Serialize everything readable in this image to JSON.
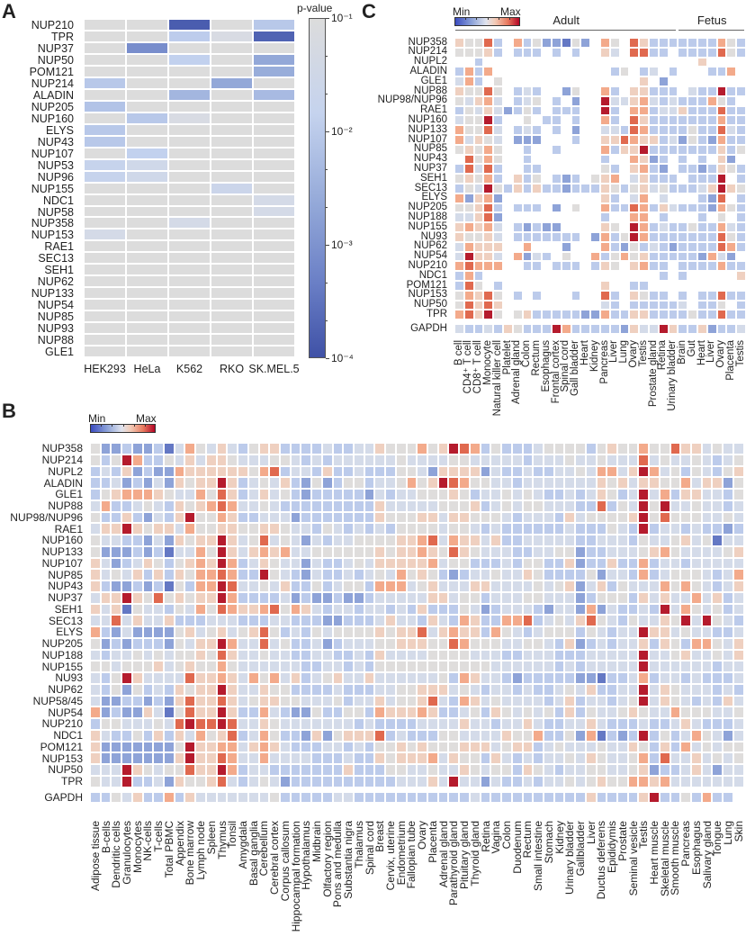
{
  "panels": {
    "a": "A",
    "b": "B",
    "c": "C"
  },
  "chart_data": [
    {
      "id": "A",
      "type": "heatmap",
      "title": "",
      "colorbar": {
        "title": "p-value",
        "ticks": [
          "10⁻¹",
          "10⁻²",
          "10⁻³",
          "10⁻⁴"
        ],
        "range_log10": [
          -1,
          -4
        ]
      },
      "columns": [
        "HEK293",
        "HeLa",
        "K562",
        "RKO",
        "SK.MEL.5"
      ],
      "rows": [
        "NUP210",
        "TPR",
        "NUP37",
        "NUP50",
        "POM121",
        "NUP214",
        "ALADIN",
        "NUP205",
        "NUP160",
        "ELYS",
        "NUP43",
        "NUP107",
        "NUP53",
        "NUP96",
        "NUP155",
        "NDC1",
        "NUP58",
        "NUP358",
        "NUP153",
        "RAE1",
        "SEC13",
        "SEH1",
        "NUP62",
        "NUP133",
        "NUP54",
        "NUP85",
        "NUP93",
        "NUP88",
        "GLE1"
      ],
      "log10_pvalues": [
        [
          -1,
          -1,
          -3.8,
          -1,
          -1.8
        ],
        [
          -1,
          -1,
          -1.7,
          -1.1,
          -3.7
        ],
        [
          -1,
          -3.0,
          -1,
          -1,
          -1
        ],
        [
          -1,
          -1,
          -1.6,
          -1,
          -2.5
        ],
        [
          -1,
          -1,
          -1,
          -1,
          -2.4
        ],
        [
          -1.8,
          -1,
          -1,
          -2.5,
          -1
        ],
        [
          -1,
          -1,
          -2.2,
          -1,
          -2.1
        ],
        [
          -1.9,
          -1,
          -1,
          -1,
          -1
        ],
        [
          -1,
          -1.8,
          -1.1,
          -1,
          -1
        ],
        [
          -1.8,
          -1,
          -1,
          -1,
          -1
        ],
        [
          -1.8,
          -1,
          -1,
          -1,
          -1
        ],
        [
          -1,
          -1.6,
          -1,
          -1,
          -1
        ],
        [
          -1.5,
          -1.3,
          -1,
          -1,
          -1
        ],
        [
          -1.5,
          -1.3,
          -1,
          -1,
          -1
        ],
        [
          -1,
          -1,
          -1,
          -1.4,
          -1
        ],
        [
          -1,
          -1,
          -1,
          -1,
          -1.2
        ],
        [
          -1,
          -1,
          -1,
          -1,
          -1.2
        ],
        [
          -1,
          -1,
          -1.2,
          -1,
          -1
        ],
        [
          -1.2,
          -1,
          -1,
          -1,
          -1
        ],
        [
          -1,
          -1,
          -1,
          -1,
          -1
        ],
        [
          -1,
          -1,
          -1,
          -1,
          -1
        ],
        [
          -1,
          -1,
          -1,
          -1,
          -1
        ],
        [
          -1,
          -1,
          -1,
          -1,
          -1
        ],
        [
          -1,
          -1,
          -1,
          -1,
          -1
        ],
        [
          -1,
          -1,
          -1,
          -1,
          -1
        ],
        [
          -1,
          -1,
          -1,
          -1,
          -1
        ],
        [
          -1,
          -1,
          -1,
          -1,
          -1
        ],
        [
          -1,
          -1,
          -1,
          -1,
          -1
        ],
        [
          -1,
          -1,
          -1,
          -1,
          -1
        ]
      ]
    },
    {
      "id": "B",
      "type": "heatmap",
      "scale_note": "values 0 (Min) to 9 (Max)",
      "colorbar": {
        "min_label": "Min",
        "max_label": "Max"
      },
      "columns": [
        "Adipose tissue",
        "B-cells",
        "Dendritic cells",
        "Granulocytes",
        "Monocytes",
        "NK-cells",
        "T-cells",
        "Total PBMC",
        "Appendix",
        "Bone marrow",
        "Lymph node",
        "Spleen",
        "Thymus",
        "Tonsil",
        "Amygdala",
        "Basal ganglia",
        "Cerebellum",
        "Cerebral cortex",
        "Corpus callosum",
        "Hippocampal formation",
        "Hypothalamus",
        "Midbrain",
        "Olfactory region",
        "Pons and medulla",
        "Substantia nigra",
        "Thalamus",
        "Spinal cord",
        "Breast",
        "Cervix, uterine",
        "Endometrium",
        "Fallopian tube",
        "Ovary",
        "Placenta",
        "Adrenal gland",
        "Parathyroid gland",
        "Pituitary gland",
        "Thyroid gland",
        "Retina",
        "Vagina",
        "Colon",
        "Duodenum",
        "Rectum",
        "Small intestine",
        "Stomach",
        "Kidney",
        "Urinary bladder",
        "Gallbladder",
        "Liver",
        "Ductus deferens",
        "Epididymis",
        "Prostate",
        "Seminal vesicle",
        "Testis",
        "Heart muscle",
        "Skeletal muscle",
        "Smooth muscle",
        "Pancreas",
        "Esophagus",
        "Salivary gland",
        "Tongue",
        "Lung",
        "Skin"
      ],
      "rows": [
        "NUP358",
        "NUP214",
        "NUPL2",
        "ALADIN",
        "GLE1",
        "NUP88",
        "NUP98/NUP96",
        "RAE1",
        "NUP160",
        "NUP133",
        "NUP107",
        "NUP85",
        "NUP43",
        "NUP37",
        "SEH1",
        "SEC13",
        "ELYS",
        "NUP205",
        "NUP188",
        "NUP155",
        "NU93",
        "NUP62",
        "NUP58/45",
        "NUP54",
        "NUP210",
        "NDC1",
        "POM121",
        "NUP153",
        "NUP50",
        "TPR"
      ],
      "values": [
        "52232231475464356633334334465557569873533345555356557558664544",
        "53597335464665444554343444444544445544444344454454448454454345",
        "34362322766666657834436334333554266662433433445477469745354356",
        "33423242656696345463252355344575698755443444444465646655746625",
        "35677765447586346453233333243445556534454543343465349473664435",
        "47334543656787445433333333364444455563454554443383549594454434",
        "53363243695576334442333333365556646655543444364555569585554454",
        "46696566475566556654435434343555545543433333343335439344343323",
        "54433242656696458454243445555667847664633444443344435445645144",
        "52223231447596467674455555565667658654443344552334445675444456",
        "64234653567697346544243345466666745533343553362336337344344444",
        "64546363657787339543243343454756532344544653333524437345554347",
        "63223231537798445463353455377745644466444454562463544475754346",
        "46696585656697333342322322344444664553444554442355536464474634",
        "64615443547587667857643443443436333542344432442724334394754534",
        "44846446333444333443332233346443643763377834546854354465949543",
        "73242222564564568534354555565668467663754345553543449664544334",
        "52323332546697448453342344455666558755544554362343446365377546",
        "43445454556586445443344334364444555544433444333444449445644546",
        "55455564565575444444334434355555555555444444343444449444444344",
        "43596444486676475746345644644444453764432333332213347344343334",
        "43525343656696446553333433344556664543443433454633449465444343",
        "42233232686686456655444534464556843764544443463443459465434364",
        "72322641586696337432253355376667633453654545363544565447555445",
        "35544454898898446544444443433334444644344643344643334334643334",
        "64335363647568347533262566683433355444465573352713239353475424",
        "62222222596677467643334434355656555666456634544454465363745455",
        "62222222696687447444433343365666746553643434454654457384464545",
        "44496545586697344333333363335544544654553654344554456233464244",
        "54493342655684345423333333333444649442433434454565577674444444"
      ],
      "reference_row": {
        "label": "GAPDH",
        "values": "33546337364444444533333443333333333343333333333633336933537 33"
      }
    },
    {
      "id": "C",
      "type": "heatmap",
      "scale_note": "values 0 (Min) to 9 (Max); '.' = no data",
      "colorbar": {
        "min_label": "Min",
        "max_label": "Max"
      },
      "groups": [
        {
          "label": "Adult",
          "n": 23
        },
        {
          "label": "Fetus",
          "n": 7
        }
      ],
      "columns": [
        "B cell",
        "CD4⁺ T cell",
        "CD8⁺ T cell",
        "Monocyte",
        "Natural killer cell",
        "Platelet",
        "Adrenal gland",
        "Colon",
        "Rectum",
        "Esophagus",
        "Frontal cortex",
        "Spinal cord",
        "Gall bladder",
        "Heart",
        "Kidney",
        "Pancreas",
        "Liver",
        "Lung",
        "Ovary",
        "Testis",
        "Prostate gland",
        "Retina",
        "Urinary bladder",
        "Brain",
        "Gut",
        "Heart",
        "Liver",
        "Ovary",
        "Placenta",
        "Testis"
      ],
      "rows": [
        "NUP358",
        "NUP214",
        "NUPL2",
        "ALADIN",
        "GLE1",
        "NUP88",
        "NUP98/NUP96",
        "RAE1",
        "NUP160",
        "NUP133",
        "NUP107",
        "NUP85",
        "NUP43",
        "NUP37",
        "SEH1",
        "SEC13",
        "ELYS",
        "NUP205",
        "NUP188",
        "NUP155",
        "NU93",
        "NUP62",
        "NUP54",
        "NUP210",
        "NDC1",
        "POM121",
        "NUP153",
        "NUP50",
        "TPR"
      ],
      "values": [
        "65583.73522152.75.863333333753",
        "55563.333.3.3..64.8833.3333853",
        "..3......................6..........",
        "3737............35.34.3...337..",
        "473.5..............6.2........",
        "65585.343..25..73.66333.433933",
        "54674.345.3.2..94467434333753",
        "354642353.333..93.7734463338 33",
        "45593..5.33.3..73.863333333733",
        "75584.343.3.2..4438733335 33843",
        "74654.222...3..66876634253 2733",
        "56575..3..3....73669333333 3635",
        ".8575..3.......3..7623.3.3.62.",
        "38483..33......53.6732.3323653",
        "56573.635.323.567.46333.3339.3",
        "354953636332333653564533346965",
        "72672..........63.47.4...328.3",
        "55683.333.2.5..7338736433 32753",
        "44682..........3..77.3...3.5.3",
        "67674.32322....65.973433533743",
        "65564.3333333.2735973333333853",
        "47666..7...2...7325343233 33873",
        "49664.7243.5..73575633333 2742",
        "78777..33.333.365.6733.3333733",
        "373..................3.3.....6..",
        "385.3..........6..33..........",
        "57685.3.3...3..83.6533.3.33833",
        "58686..........43.333334.335.3",
        "78695.563333322733663333533833"
      ],
      "reference_row": {
        "label": "GAPDH",
        "values": "433436533397333332644963362334"
      }
    }
  ]
}
